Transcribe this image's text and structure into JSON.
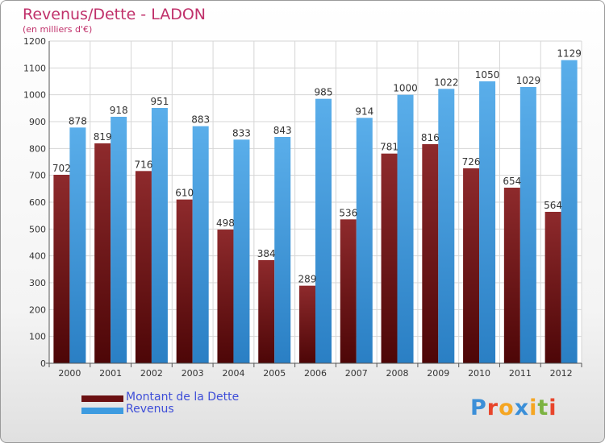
{
  "chart_data": {
    "type": "bar",
    "title": "Revenus/Dette - LADON",
    "subtitle": "(en milliers d'€)",
    "categories": [
      "2000",
      "2001",
      "2002",
      "2003",
      "2004",
      "2005",
      "2006",
      "2007",
      "2008",
      "2009",
      "2010",
      "2011",
      "2012"
    ],
    "series": [
      {
        "name": "Montant de la Dette",
        "color": "#7a1a1c",
        "values": [
          702,
          819,
          716,
          610,
          498,
          384,
          289,
          536,
          781,
          816,
          726,
          654,
          564
        ]
      },
      {
        "name": "Revenus",
        "color": "#3d9be0",
        "values": [
          878,
          918,
          951,
          883,
          833,
          843,
          985,
          914,
          1000,
          1022,
          1050,
          1029,
          1129
        ]
      }
    ],
    "ylim": [
      0,
      1200
    ],
    "yticks": [
      0,
      100,
      200,
      300,
      400,
      500,
      600,
      700,
      800,
      900,
      1000,
      1100,
      1200
    ],
    "grid": true,
    "legend": "bottom-left"
  },
  "logo": {
    "text": "Proxiti",
    "colors": [
      "#3b8fd8",
      "#e8452b",
      "#f5a623",
      "#3b8fd8",
      "#f5a623",
      "#7cb342",
      "#e8452b"
    ]
  }
}
